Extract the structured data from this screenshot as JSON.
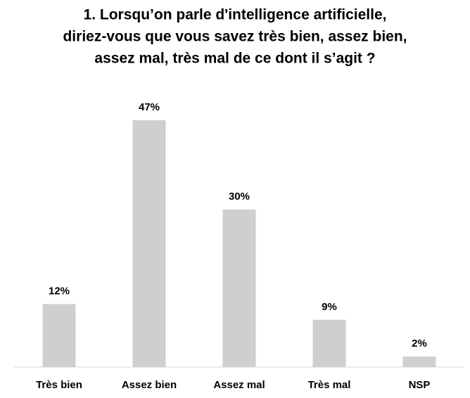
{
  "chart_data": {
    "type": "bar",
    "title": [
      "1. Lorsqu’on parle d'intelligence artificielle,",
      "diriez-vous que vous savez très bien, assez bien,",
      "assez mal, très mal de ce dont il s’agit ?"
    ],
    "categories": [
      "Très bien",
      "Assez bien",
      "Assez mal",
      "Très mal",
      "NSP"
    ],
    "values": [
      12,
      47,
      30,
      9,
      2
    ],
    "value_labels": [
      "12%",
      "47%",
      "30%",
      "9%",
      "2%"
    ],
    "color": "#d0cece"
  }
}
